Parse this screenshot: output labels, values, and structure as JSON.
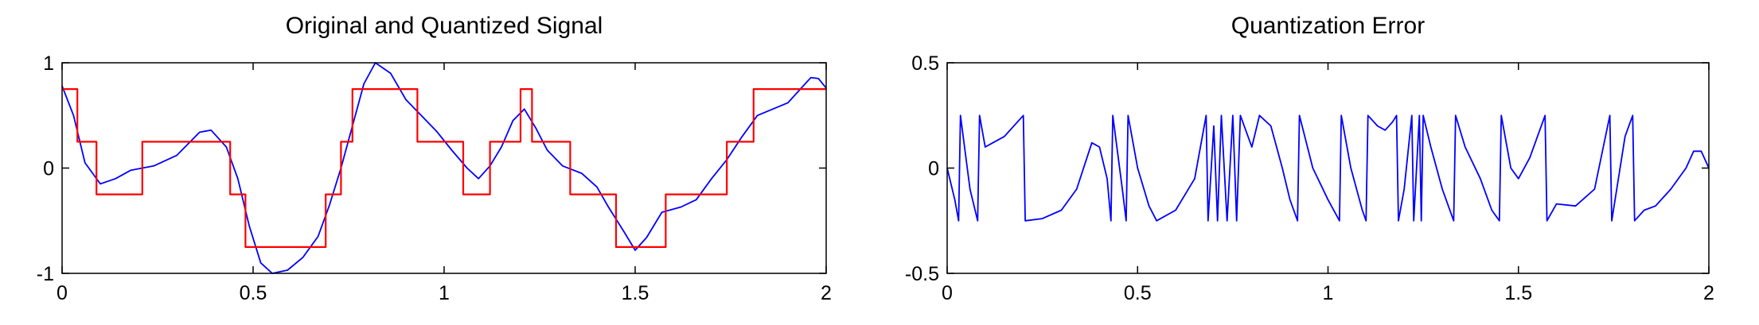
{
  "chart_data": [
    {
      "type": "line",
      "title": "Original and Quantized Signal",
      "xlabel": "",
      "ylabel": "",
      "xlim": [
        0,
        2
      ],
      "ylim": [
        -1,
        1
      ],
      "x_ticks": [
        "0",
        "0.5",
        "1",
        "1.5",
        "2"
      ],
      "y_ticks": [
        "-1",
        "0",
        "1"
      ],
      "grid": false,
      "series": [
        {
          "color": "#0000ff",
          "style": "line",
          "points": [
            [
              0,
              0.78
            ],
            [
              0.03,
              0.5
            ],
            [
              0.06,
              0.05
            ],
            [
              0.1,
              -0.15
            ],
            [
              0.14,
              -0.1
            ],
            [
              0.18,
              -0.02
            ],
            [
              0.24,
              0.02
            ],
            [
              0.3,
              0.12
            ],
            [
              0.36,
              0.34
            ],
            [
              0.39,
              0.36
            ],
            [
              0.43,
              0.2
            ],
            [
              0.46,
              -0.1
            ],
            [
              0.49,
              -0.55
            ],
            [
              0.52,
              -0.9
            ],
            [
              0.55,
              -1.0
            ],
            [
              0.59,
              -0.97
            ],
            [
              0.63,
              -0.85
            ],
            [
              0.67,
              -0.65
            ],
            [
              0.7,
              -0.35
            ],
            [
              0.73,
              0.0
            ],
            [
              0.76,
              0.4
            ],
            [
              0.79,
              0.8
            ],
            [
              0.82,
              1.0
            ],
            [
              0.86,
              0.9
            ],
            [
              0.9,
              0.65
            ],
            [
              0.94,
              0.5
            ],
            [
              0.98,
              0.35
            ],
            [
              1.02,
              0.17
            ],
            [
              1.06,
              0.0
            ],
            [
              1.09,
              -0.1
            ],
            [
              1.12,
              0.02
            ],
            [
              1.15,
              0.2
            ],
            [
              1.18,
              0.45
            ],
            [
              1.21,
              0.56
            ],
            [
              1.24,
              0.38
            ],
            [
              1.27,
              0.17
            ],
            [
              1.31,
              0.02
            ],
            [
              1.36,
              -0.05
            ],
            [
              1.4,
              -0.18
            ],
            [
              1.43,
              -0.37
            ],
            [
              1.47,
              -0.6
            ],
            [
              1.5,
              -0.78
            ],
            [
              1.53,
              -0.66
            ],
            [
              1.57,
              -0.42
            ],
            [
              1.62,
              -0.37
            ],
            [
              1.66,
              -0.3
            ],
            [
              1.7,
              -0.1
            ],
            [
              1.74,
              0.08
            ],
            [
              1.78,
              0.3
            ],
            [
              1.82,
              0.5
            ],
            [
              1.86,
              0.56
            ],
            [
              1.9,
              0.62
            ],
            [
              1.93,
              0.74
            ],
            [
              1.96,
              0.86
            ],
            [
              1.98,
              0.85
            ],
            [
              2.0,
              0.76
            ]
          ]
        },
        {
          "color": "#ff0000",
          "style": "step",
          "points": [
            [
              0,
              0.75
            ],
            [
              0.04,
              0.75
            ],
            [
              0.04,
              0.25
            ],
            [
              0.09,
              0.25
            ],
            [
              0.09,
              -0.25
            ],
            [
              0.21,
              -0.25
            ],
            [
              0.21,
              0.25
            ],
            [
              0.44,
              0.25
            ],
            [
              0.44,
              -0.25
            ],
            [
              0.48,
              -0.25
            ],
            [
              0.48,
              -0.75
            ],
            [
              0.69,
              -0.75
            ],
            [
              0.69,
              -0.25
            ],
            [
              0.73,
              -0.25
            ],
            [
              0.73,
              0.25
            ],
            [
              0.76,
              0.25
            ],
            [
              0.76,
              0.75
            ],
            [
              0.93,
              0.75
            ],
            [
              0.93,
              0.25
            ],
            [
              1.05,
              0.25
            ],
            [
              1.05,
              -0.25
            ],
            [
              1.12,
              -0.25
            ],
            [
              1.12,
              0.25
            ],
            [
              1.2,
              0.25
            ],
            [
              1.2,
              0.75
            ],
            [
              1.23,
              0.75
            ],
            [
              1.23,
              0.25
            ],
            [
              1.33,
              0.25
            ],
            [
              1.33,
              -0.25
            ],
            [
              1.45,
              -0.25
            ],
            [
              1.45,
              -0.75
            ],
            [
              1.58,
              -0.75
            ],
            [
              1.58,
              -0.25
            ],
            [
              1.74,
              -0.25
            ],
            [
              1.74,
              0.25
            ],
            [
              1.81,
              0.25
            ],
            [
              1.81,
              0.75
            ],
            [
              2.0,
              0.75
            ]
          ]
        }
      ]
    },
    {
      "type": "line",
      "title": "Quantization Error",
      "xlabel": "",
      "ylabel": "",
      "xlim": [
        0,
        2
      ],
      "ylim": [
        -0.5,
        0.5
      ],
      "x_ticks": [
        "0",
        "0.5",
        "1",
        "1.5",
        "2"
      ],
      "y_ticks": [
        "-0.5",
        "0",
        "0.5"
      ],
      "grid": false,
      "series": [
        {
          "color": "#0000ff",
          "style": "line",
          "points": [
            [
              0,
              0.0
            ],
            [
              0.02,
              -0.15
            ],
            [
              0.03,
              -0.25
            ],
            [
              0.035,
              0.25
            ],
            [
              0.06,
              -0.1
            ],
            [
              0.08,
              -0.25
            ],
            [
              0.085,
              0.25
            ],
            [
              0.1,
              0.1
            ],
            [
              0.12,
              0.12
            ],
            [
              0.15,
              0.15
            ],
            [
              0.2,
              0.25
            ],
            [
              0.205,
              -0.25
            ],
            [
              0.25,
              -0.24
            ],
            [
              0.3,
              -0.2
            ],
            [
              0.34,
              -0.1
            ],
            [
              0.38,
              0.12
            ],
            [
              0.4,
              0.1
            ],
            [
              0.42,
              -0.05
            ],
            [
              0.43,
              -0.25
            ],
            [
              0.435,
              0.25
            ],
            [
              0.46,
              -0.1
            ],
            [
              0.47,
              -0.25
            ],
            [
              0.475,
              0.25
            ],
            [
              0.5,
              0.0
            ],
            [
              0.53,
              -0.18
            ],
            [
              0.55,
              -0.25
            ],
            [
              0.6,
              -0.2
            ],
            [
              0.65,
              -0.05
            ],
            [
              0.68,
              0.25
            ],
            [
              0.685,
              -0.25
            ],
            [
              0.7,
              0.2
            ],
            [
              0.71,
              -0.25
            ],
            [
              0.72,
              0.25
            ],
            [
              0.735,
              -0.25
            ],
            [
              0.75,
              0.25
            ],
            [
              0.76,
              -0.25
            ],
            [
              0.77,
              0.25
            ],
            [
              0.8,
              0.1
            ],
            [
              0.82,
              0.25
            ],
            [
              0.85,
              0.2
            ],
            [
              0.88,
              0.0
            ],
            [
              0.9,
              -0.15
            ],
            [
              0.92,
              -0.25
            ],
            [
              0.925,
              0.25
            ],
            [
              0.96,
              0.0
            ],
            [
              1.0,
              -0.15
            ],
            [
              1.03,
              -0.25
            ],
            [
              1.035,
              0.25
            ],
            [
              1.06,
              0.0
            ],
            [
              1.09,
              -0.2
            ],
            [
              1.1,
              -0.25
            ],
            [
              1.105,
              0.25
            ],
            [
              1.13,
              0.2
            ],
            [
              1.15,
              0.18
            ],
            [
              1.17,
              0.22
            ],
            [
              1.18,
              0.25
            ],
            [
              1.185,
              -0.25
            ],
            [
              1.2,
              -0.1
            ],
            [
              1.22,
              0.25
            ],
            [
              1.225,
              -0.25
            ],
            [
              1.24,
              0.25
            ],
            [
              1.245,
              -0.25
            ],
            [
              1.25,
              0.25
            ],
            [
              1.27,
              0.1
            ],
            [
              1.3,
              -0.1
            ],
            [
              1.33,
              -0.25
            ],
            [
              1.335,
              0.25
            ],
            [
              1.36,
              0.1
            ],
            [
              1.4,
              -0.05
            ],
            [
              1.43,
              -0.2
            ],
            [
              1.45,
              -0.25
            ],
            [
              1.455,
              0.25
            ],
            [
              1.48,
              0.0
            ],
            [
              1.5,
              -0.05
            ],
            [
              1.53,
              0.05
            ],
            [
              1.57,
              0.25
            ],
            [
              1.575,
              -0.25
            ],
            [
              1.6,
              -0.17
            ],
            [
              1.65,
              -0.18
            ],
            [
              1.7,
              -0.1
            ],
            [
              1.74,
              0.25
            ],
            [
              1.745,
              -0.25
            ],
            [
              1.78,
              0.15
            ],
            [
              1.8,
              0.25
            ],
            [
              1.805,
              -0.25
            ],
            [
              1.83,
              -0.2
            ],
            [
              1.86,
              -0.18
            ],
            [
              1.9,
              -0.1
            ],
            [
              1.94,
              0.0
            ],
            [
              1.96,
              0.08
            ],
            [
              1.98,
              0.08
            ],
            [
              2.0,
              0.0
            ]
          ]
        }
      ]
    }
  ]
}
